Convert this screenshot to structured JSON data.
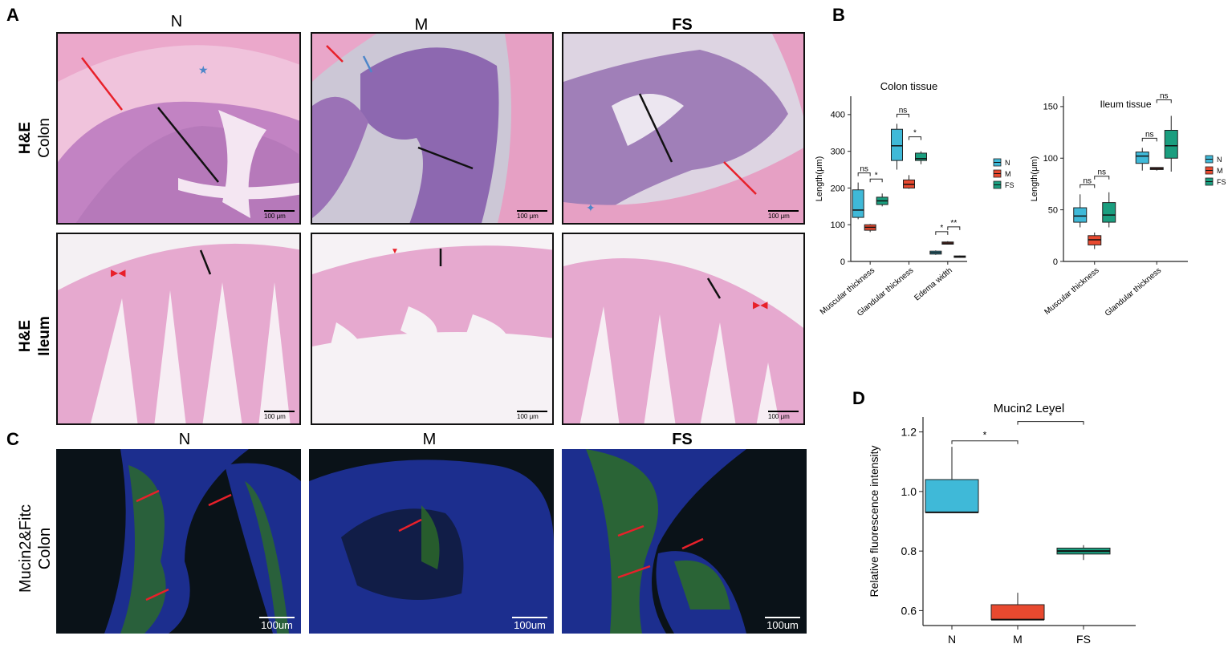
{
  "panels": {
    "A": "A",
    "B": "B",
    "C": "C",
    "D": "D"
  },
  "groups": {
    "N": "N",
    "M": "M",
    "FS": "FS"
  },
  "rows": {
    "he_colon": {
      "stain": "H&E",
      "tissue": "Colon"
    },
    "he_ileum": {
      "stain": "H&E",
      "tissue": "Ileum"
    },
    "mucin_colon": {
      "stain": "Mucin2&Fitc",
      "tissue": "Colon"
    }
  },
  "scale_bars": {
    "he": "100 μm",
    "fluor": "100um"
  },
  "colors": {
    "N": "#3fb9d8",
    "M": "#e8492f",
    "FS": "#1a9e7f",
    "he_bg": "#e9a6c9",
    "he_tissue": "#b06fb8",
    "fluor_bg": "#0a1420",
    "fluor_blue": "#1a2fa6",
    "fluor_green": "#2f7a22",
    "arrow_red": "#e8202a",
    "arrow_blue": "#4d86c9"
  },
  "chart_data": [
    {
      "id": "colon",
      "type": "box",
      "title": "Colon tissue",
      "ylabel": "Length(μm)",
      "ylim": [
        0,
        450
      ],
      "yticks": [
        0,
        100,
        200,
        300,
        400
      ],
      "categories": [
        "Muscular thickness",
        "Glandular thickness",
        "Edema width"
      ],
      "legend": [
        "N",
        "M",
        "FS"
      ],
      "series": [
        {
          "name": "N",
          "boxes": [
            {
              "min": 115,
              "q1": 120,
              "median": 140,
              "q3": 195,
              "max": 215
            },
            {
              "min": 250,
              "q1": 275,
              "median": 315,
              "q3": 360,
              "max": 375
            },
            {
              "min": 18,
              "q1": 20,
              "median": 24,
              "q3": 28,
              "max": 30
            }
          ]
        },
        {
          "name": "M",
          "boxes": [
            {
              "min": 80,
              "q1": 85,
              "median": 93,
              "q3": 100,
              "max": 102
            },
            {
              "min": 198,
              "q1": 200,
              "median": 210,
              "q3": 222,
              "max": 235
            },
            {
              "min": 46,
              "q1": 47,
              "median": 50,
              "q3": 53,
              "max": 55
            }
          ]
        },
        {
          "name": "FS",
          "boxes": [
            {
              "min": 150,
              "q1": 155,
              "median": 165,
              "q3": 175,
              "max": 185
            },
            {
              "min": 265,
              "q1": 275,
              "median": 280,
              "q3": 295,
              "max": 300
            },
            {
              "min": 10,
              "q1": 11,
              "median": 13,
              "q3": 15,
              "max": 16
            }
          ]
        }
      ],
      "significance": [
        {
          "cat": 0,
          "pair": "N-M",
          "label": "ns"
        },
        {
          "cat": 0,
          "pair": "M-FS",
          "label": "*"
        },
        {
          "cat": 1,
          "pair": "N-M",
          "label": "ns"
        },
        {
          "cat": 1,
          "pair": "M-FS",
          "label": "*"
        },
        {
          "cat": 2,
          "pair": "N-M",
          "label": "*"
        },
        {
          "cat": 2,
          "pair": "M-FS",
          "label": "**"
        }
      ]
    },
    {
      "id": "ileum",
      "type": "box",
      "title": "Ileum tissue",
      "ylabel": "Length(μm)",
      "ylim": [
        0,
        160
      ],
      "yticks": [
        0,
        50,
        100,
        150
      ],
      "categories": [
        "Muscular thickness",
        "Glandular thickness"
      ],
      "legend": [
        "N",
        "M",
        "FS"
      ],
      "series": [
        {
          "name": "N",
          "boxes": [
            {
              "min": 33,
              "q1": 38,
              "median": 44,
              "q3": 52,
              "max": 65
            },
            {
              "min": 88,
              "q1": 95,
              "median": 102,
              "q3": 106,
              "max": 110
            }
          ]
        },
        {
          "name": "M",
          "boxes": [
            {
              "min": 12,
              "q1": 16,
              "median": 21,
              "q3": 25,
              "max": 28
            },
            {
              "min": 88,
              "q1": 89,
              "median": 90,
              "q3": 91,
              "max": 91
            }
          ]
        },
        {
          "name": "FS",
          "boxes": [
            {
              "min": 33,
              "q1": 38,
              "median": 45,
              "q3": 57,
              "max": 67
            },
            {
              "min": 87,
              "q1": 100,
              "median": 112,
              "q3": 127,
              "max": 141
            }
          ]
        }
      ],
      "significance": [
        {
          "cat": 0,
          "pair": "N-M",
          "label": "ns"
        },
        {
          "cat": 0,
          "pair": "M-FS",
          "label": "ns"
        },
        {
          "cat": 1,
          "pair": "N-M",
          "label": "ns"
        },
        {
          "cat": 1,
          "pair": "M-FS",
          "label": "ns"
        }
      ]
    },
    {
      "id": "mucin",
      "type": "box",
      "title": "Mucin2 Level",
      "ylabel": "Relative fluorescence intensity",
      "ylim": [
        0.55,
        1.25
      ],
      "yticks": [
        0.6,
        0.8,
        1.0,
        1.2
      ],
      "categories": [
        "N",
        "M",
        "FS"
      ],
      "series": [
        {
          "name": "N",
          "boxes": [
            {
              "min": 0.93,
              "q1": 0.93,
              "median": 0.93,
              "q3": 1.04,
              "max": 1.15
            }
          ]
        },
        {
          "name": "M",
          "boxes": [
            {
              "min": 0.57,
              "q1": 0.57,
              "median": 0.57,
              "q3": 0.62,
              "max": 0.66
            }
          ]
        },
        {
          "name": "FS",
          "boxes": [
            {
              "min": 0.77,
              "q1": 0.79,
              "median": 0.8,
              "q3": 0.81,
              "max": 0.82
            }
          ]
        }
      ],
      "significance": [
        {
          "pair": "N-M",
          "label": "*"
        },
        {
          "pair": "M-FS",
          "label": "*"
        }
      ]
    }
  ]
}
